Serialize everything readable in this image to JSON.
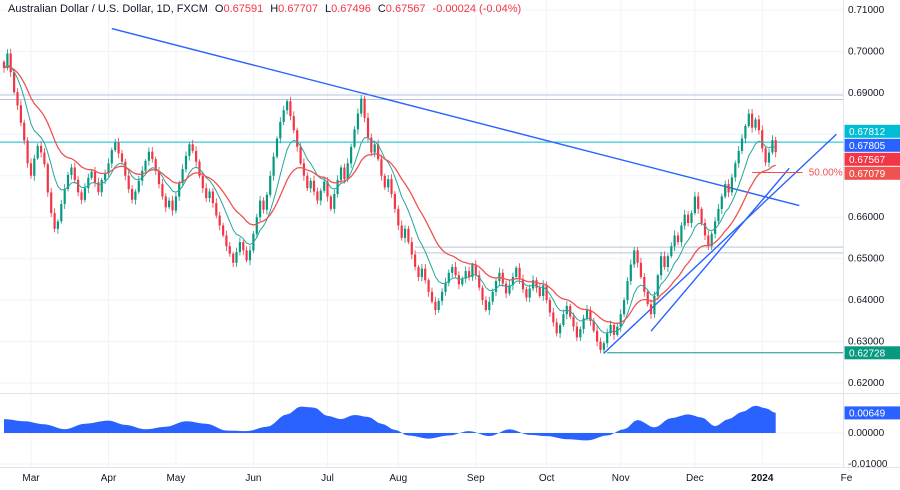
{
  "legend": {
    "title": "Australian Dollar / U.S. Dollar, 1D, FXCM",
    "o_label": "O",
    "o_value": "0.67591",
    "h_label": "H",
    "h_value": "0.67707",
    "l_label": "L",
    "l_value": "0.67496",
    "c_label": "C",
    "c_value": "0.67567",
    "change": "-0.00024 (-0.04%)"
  },
  "colors": {
    "up": "#089981",
    "down": "#f23645",
    "grid": "#f0f3fa",
    "separator": "#e0e3eb",
    "axis_text": "#131722",
    "ma_fast": "#26a69a",
    "ma_slow": "#ef5350",
    "trendline_blue": "#2962ff",
    "indicator_blue": "#2962ff"
  },
  "chart_data": {
    "type": "candlestick",
    "symbol": "Australian Dollar / U.S. Dollar",
    "interval": "1D",
    "exchange": "FXCM",
    "price_axis": {
      "min": 0.62,
      "max": 0.71,
      "ticks": [
        {
          "text": "0.71000",
          "value": 0.71
        },
        {
          "text": "0.70000",
          "value": 0.7
        },
        {
          "text": "0.69000",
          "value": 0.69
        },
        {
          "text": "0.66000",
          "value": 0.66
        },
        {
          "text": "0.65000",
          "value": 0.65
        },
        {
          "text": "0.64000",
          "value": 0.64
        },
        {
          "text": "0.63000",
          "value": 0.63
        },
        {
          "text": "0.62000",
          "value": 0.62
        }
      ]
    },
    "months": [
      {
        "label": "Mar",
        "i": 8
      },
      {
        "label": "Apr",
        "i": 31
      },
      {
        "label": "May",
        "i": 51
      },
      {
        "label": "Jun",
        "i": 74
      },
      {
        "label": "Jul",
        "i": 96
      },
      {
        "label": "Aug",
        "i": 117
      },
      {
        "label": "Sep",
        "i": 140
      },
      {
        "label": "Oct",
        "i": 161
      },
      {
        "label": "Nov",
        "i": 183
      },
      {
        "label": "Dec",
        "i": 205
      },
      {
        "label": "2024",
        "i": 225,
        "bold": true
      },
      {
        "label": "Fe",
        "i": 250
      }
    ],
    "closes": [
      0.696,
      0.6995,
      0.695,
      0.6902,
      0.687,
      0.6828,
      0.6785,
      0.673,
      0.67,
      0.6742,
      0.6772,
      0.6756,
      0.6728,
      0.666,
      0.661,
      0.6572,
      0.659,
      0.6632,
      0.6668,
      0.6702,
      0.672,
      0.669,
      0.666,
      0.6642,
      0.667,
      0.6695,
      0.671,
      0.6684,
      0.666,
      0.669,
      0.6705,
      0.673,
      0.6762,
      0.678,
      0.6754,
      0.6734,
      0.67,
      0.6668,
      0.6642,
      0.6662,
      0.6688,
      0.6712,
      0.6736,
      0.6758,
      0.674,
      0.6712,
      0.668,
      0.665,
      0.6624,
      0.664,
      0.6616,
      0.665,
      0.6682,
      0.6716,
      0.6748,
      0.6776,
      0.676,
      0.6734,
      0.67,
      0.667,
      0.6646,
      0.6662,
      0.6634,
      0.6604,
      0.658,
      0.6556,
      0.653,
      0.6512,
      0.649,
      0.6516,
      0.654,
      0.652,
      0.6496,
      0.652,
      0.656,
      0.66,
      0.664,
      0.6618,
      0.6654,
      0.67,
      0.6746,
      0.679,
      0.683,
      0.6858,
      0.688,
      0.6844,
      0.681,
      0.677,
      0.673,
      0.67,
      0.667,
      0.6688,
      0.6662,
      0.664,
      0.6664,
      0.6686,
      0.665,
      0.662,
      0.6656,
      0.669,
      0.672,
      0.6692,
      0.673,
      0.677,
      0.6812,
      0.685,
      0.6886,
      0.684,
      0.6792,
      0.6756,
      0.6776,
      0.674,
      0.67,
      0.6672,
      0.6692,
      0.6656,
      0.662,
      0.658,
      0.655,
      0.6572,
      0.654,
      0.651,
      0.648,
      0.6456,
      0.6476,
      0.6448,
      0.642,
      0.6396,
      0.6376,
      0.6398,
      0.642,
      0.6442,
      0.6466,
      0.648,
      0.646,
      0.6438,
      0.6452,
      0.647,
      0.6456,
      0.6486,
      0.646,
      0.643,
      0.64,
      0.6376,
      0.6396,
      0.642,
      0.6446,
      0.6466,
      0.644,
      0.6416,
      0.6436,
      0.6456,
      0.6478,
      0.645,
      0.6426,
      0.6406,
      0.6428,
      0.6448,
      0.643,
      0.641,
      0.6436,
      0.64,
      0.637,
      0.6346,
      0.632,
      0.634,
      0.6366,
      0.6386,
      0.636,
      0.6336,
      0.631,
      0.633,
      0.6356,
      0.6376,
      0.635,
      0.6326,
      0.63,
      0.628,
      0.6296,
      0.632,
      0.634,
      0.6316,
      0.6336,
      0.6366,
      0.64,
      0.6446,
      0.6486,
      0.652,
      0.649,
      0.6456,
      0.642,
      0.639,
      0.6366,
      0.641,
      0.646,
      0.6506,
      0.648,
      0.6506,
      0.653,
      0.6556,
      0.654,
      0.658,
      0.6606,
      0.6586,
      0.661,
      0.665,
      0.662,
      0.6586,
      0.6556,
      0.653,
      0.656,
      0.659,
      0.662,
      0.665,
      0.668,
      0.666,
      0.6696,
      0.673,
      0.676,
      0.679,
      0.682,
      0.685,
      0.6816,
      0.6836,
      0.681,
      0.6766,
      0.6732,
      0.6756,
      0.6786,
      0.67567
    ],
    "horizontal_levels": [
      {
        "name": "resistance-line-1",
        "price": 0.6895,
        "color": "#b8c4d9"
      },
      {
        "name": "resistance-line-2",
        "price": 0.6884,
        "color": "#b8c4d9"
      },
      {
        "name": "horizontal-line-067812",
        "price": 0.67812,
        "color": "#00bcd4"
      },
      {
        "name": "support-line-1",
        "price": 0.6528,
        "from_i": 122,
        "color": "#b8c4d9"
      },
      {
        "name": "support-line-2",
        "price": 0.6514,
        "from_i": 122,
        "color": "#b8c4d9"
      },
      {
        "name": "low-ray-062728",
        "price": 0.62728,
        "from_i": 179,
        "color": "#089981"
      }
    ],
    "trendlines": [
      {
        "name": "descending-trendline",
        "i1": 32,
        "p1": 0.7055,
        "i2": 236,
        "p2": 0.6628,
        "color": "#2962ff"
      },
      {
        "name": "ascending-trendline-1",
        "i1": 178,
        "p1": 0.6272,
        "i2": 247,
        "p2": 0.68,
        "color": "#2962ff"
      },
      {
        "name": "ascending-trendline-2",
        "i1": 192,
        "p1": 0.6325,
        "i2": 233,
        "p2": 0.6718,
        "color": "#2962ff"
      }
    ],
    "fib_level": {
      "text": "50.00%",
      "price": 0.67079,
      "from_i": 222,
      "to_i": 237,
      "color": "#ef5350"
    },
    "price_tags": [
      {
        "text": "0.67812",
        "price": 0.67812,
        "color": "#00bcd4"
      },
      {
        "text": "0.67805",
        "price": 0.67805,
        "color": "#2962ff"
      },
      {
        "text": "0.67567",
        "price": 0.67567,
        "color": "#f23645"
      },
      {
        "text": "0.67079",
        "price": 0.67079,
        "color": "#ef5350"
      },
      {
        "text": "0.62728",
        "price": 0.62728,
        "color": "#089981"
      }
    ],
    "indicator": {
      "name": "momentum-area",
      "color": "#2962ff",
      "ticks": [
        {
          "text": "0.00000",
          "value": 0
        },
        {
          "text": "-0.01000",
          "value": -0.01
        }
      ],
      "value_tag": {
        "text": "0.00649",
        "value": 0.00649,
        "color": "#2962ff"
      },
      "samples": [
        [
          0,
          0.0045
        ],
        [
          6,
          0.0038
        ],
        [
          12,
          0.0028
        ],
        [
          18,
          0.0012
        ],
        [
          24,
          0.003
        ],
        [
          31,
          0.004
        ],
        [
          36,
          0.0026
        ],
        [
          42,
          0.0012
        ],
        [
          48,
          0.002
        ],
        [
          54,
          0.0038
        ],
        [
          60,
          0.003
        ],
        [
          66,
          0.0008
        ],
        [
          72,
          0.0006
        ],
        [
          78,
          0.002
        ],
        [
          84,
          0.006
        ],
        [
          88,
          0.0085
        ],
        [
          92,
          0.0082
        ],
        [
          96,
          0.0055
        ],
        [
          100,
          0.0045
        ],
        [
          104,
          0.0058
        ],
        [
          108,
          0.0052
        ],
        [
          112,
          0.003
        ],
        [
          116,
          0.001
        ],
        [
          120,
          -0.0008
        ],
        [
          126,
          -0.0018
        ],
        [
          132,
          -0.0008
        ],
        [
          138,
          0.0006
        ],
        [
          144,
          -0.001
        ],
        [
          150,
          0.0012
        ],
        [
          156,
          -0.0006
        ],
        [
          161,
          -0.001
        ],
        [
          167,
          -0.002
        ],
        [
          173,
          -0.0024
        ],
        [
          179,
          -0.0008
        ],
        [
          184,
          0.0012
        ],
        [
          188,
          0.0042
        ],
        [
          193,
          0.0018
        ],
        [
          198,
          0.0048
        ],
        [
          203,
          0.006
        ],
        [
          207,
          0.005
        ],
        [
          211,
          0.0022
        ],
        [
          215,
          0.0045
        ],
        [
          219,
          0.0068
        ],
        [
          223,
          0.0088
        ],
        [
          226,
          0.008
        ],
        [
          229,
          0.00649
        ]
      ]
    }
  }
}
